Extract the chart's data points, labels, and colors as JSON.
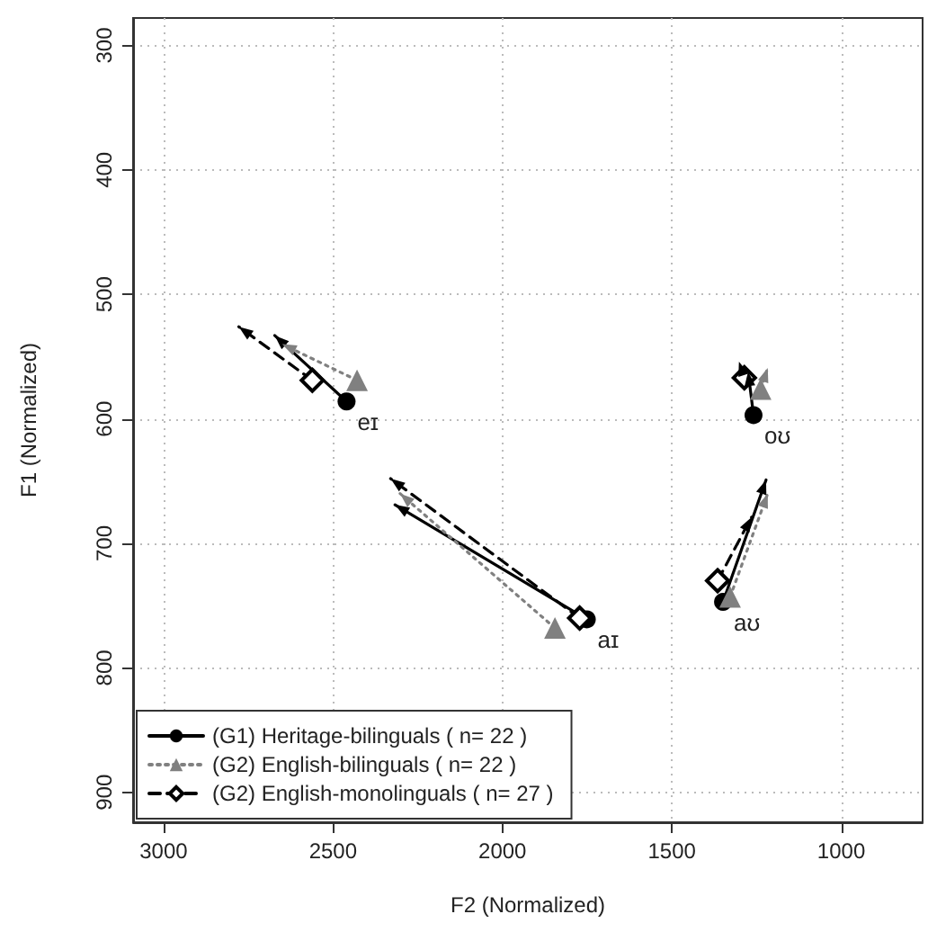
{
  "chart_data": {
    "type": "line",
    "xlabel": "F2 (Normalized)",
    "ylabel": "F1 (Normalized)",
    "xlim": [
      3090,
      760
    ],
    "ylim": [
      924,
      278
    ],
    "xticks": [
      3000,
      2500,
      2000,
      1500,
      1000
    ],
    "yticks": [
      300,
      400,
      500,
      600,
      700,
      800,
      900
    ],
    "grid": true,
    "legend": "bottom left",
    "series": [
      {
        "name": "(G1) Heritage-bilinguals ( n= 22 )",
        "color": "#000000",
        "marker": "circle",
        "line_style": "solid",
        "x": [
          2460,
          2672,
          null,
          1751,
          2317,
          null,
          1349,
          1222,
          null,
          1259,
          1275
        ],
        "values": [
          586,
          533,
          null,
          761,
          669,
          null,
          747,
          649,
          null,
          597,
          562
        ]
      },
      {
        "name": "(G2) English-bilinguals ( n= 22 )",
        "color": "#808080",
        "marker": "triangle",
        "line_style": "dotted",
        "x": [
          2429,
          2650,
          null,
          1845,
          2302,
          null,
          1328,
          1217,
          null,
          1238,
          1217
        ],
        "values": [
          569,
          540,
          null,
          768,
          660,
          null,
          743,
          660,
          null,
          576,
          559
        ]
      },
      {
        "name": "(G2) English-monolinguals ( n= 27 )",
        "color": "#000000",
        "marker": "diamond",
        "line_style": "dashed",
        "x": [
          2561,
          2778,
          null,
          1772,
          2330,
          null,
          1365,
          1265,
          null,
          1286,
          1302
        ],
        "values": [
          569,
          526,
          null,
          760,
          648,
          null,
          730,
          679,
          null,
          567,
          554
        ]
      }
    ],
    "annotations": [
      {
        "text": "eɪ",
        "x": 2460,
        "y": 586
      },
      {
        "text": "aɪ",
        "x": 1751,
        "y": 761
      },
      {
        "text": "aʊ",
        "x": 1349,
        "y": 747
      },
      {
        "text": "oʊ",
        "x": 1259,
        "y": 597
      }
    ]
  }
}
